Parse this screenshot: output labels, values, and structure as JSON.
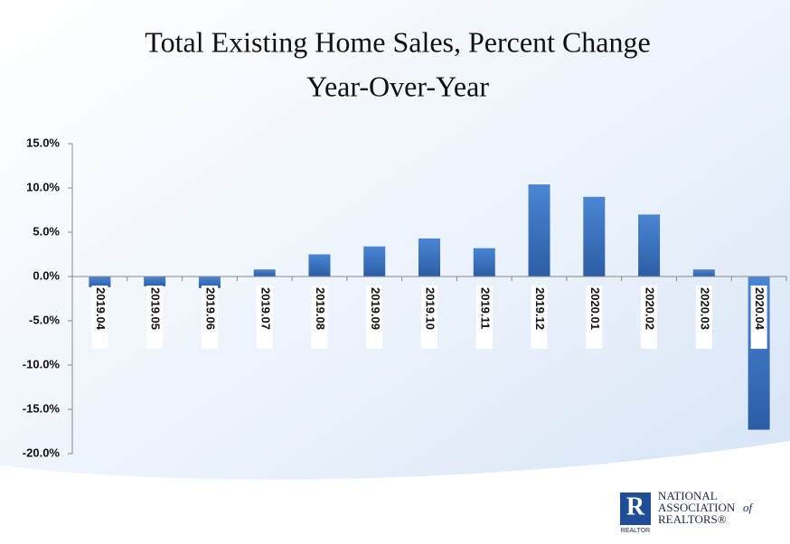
{
  "chart_data": {
    "type": "bar",
    "title": "Total Existing Home Sales, Percent Change",
    "subtitle": "Year-Over-Year",
    "categories": [
      "2019.04",
      "2019.05",
      "2019.06",
      "2019.07",
      "2019.08",
      "2019.09",
      "2019.10",
      "2019.11",
      "2019.12",
      "2020.01",
      "2020.02",
      "2020.03",
      "2020.04"
    ],
    "values": [
      -1.2,
      -1.1,
      -1.3,
      0.8,
      2.5,
      3.4,
      4.3,
      3.2,
      10.4,
      9.0,
      7.0,
      0.8,
      -17.3
    ],
    "color": "#3a73c0",
    "ylim": [
      -20,
      15
    ],
    "yticks": [
      {
        "value": -20,
        "label": "-20.0%"
      },
      {
        "value": -15,
        "label": "-15.0%"
      },
      {
        "value": -10,
        "label": "-10.0%"
      },
      {
        "value": -5,
        "label": "-5.0%"
      },
      {
        "value": 0,
        "label": "0.0%"
      },
      {
        "value": 5,
        "label": "5.0%"
      },
      {
        "value": 10,
        "label": "10.0%"
      },
      {
        "value": 15,
        "label": "15.0%"
      }
    ],
    "grid": false
  },
  "logo": {
    "line1": "NATIONAL",
    "line2": "ASSOCIATION",
    "line2b": "of",
    "line3": "REALTORS®",
    "mark": "REALTOR"
  }
}
